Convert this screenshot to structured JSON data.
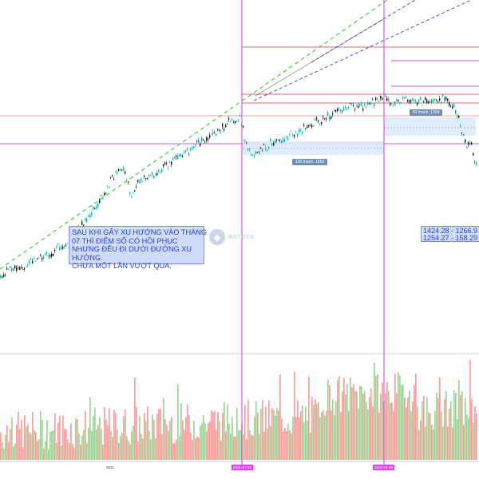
{
  "chart_data": {
    "type": "candlestick",
    "ylim": [
      0,
      1600
    ],
    "trend_note": [
      "Sau khi gãy xu hướng vào tháng",
      "07 thì điểm số có hồi phục",
      "nhưng đều đi dưới đường xu",
      "hướng.",
      "Chưa một lần vượt qua."
    ],
    "price_stats": [
      "1424.28 - 1266.9",
      "1254.27 - 158.29"
    ],
    "range_labels": [
      "130 thanh, 185đ",
      "84 thanh, 130đ"
    ],
    "x_axis_labels": [
      "2021",
      "2021-07-02",
      "2022-01-06"
    ],
    "price_path": [
      [
        0,
        350
      ],
      [
        20,
        380
      ],
      [
        40,
        410
      ],
      [
        60,
        440
      ],
      [
        80,
        490
      ],
      [
        100,
        560
      ],
      [
        115,
        640
      ],
      [
        130,
        720
      ],
      [
        145,
        820
      ],
      [
        152,
        840
      ],
      [
        160,
        780
      ],
      [
        163,
        700
      ],
      [
        170,
        760
      ],
      [
        185,
        800
      ],
      [
        200,
        820
      ],
      [
        215,
        870
      ],
      [
        230,
        900
      ],
      [
        250,
        950
      ],
      [
        270,
        1000
      ],
      [
        290,
        1050
      ],
      [
        300,
        1060
      ],
      [
        308,
        950
      ],
      [
        318,
        880
      ],
      [
        330,
        930
      ],
      [
        345,
        960
      ],
      [
        360,
        980
      ],
      [
        380,
        1010
      ],
      [
        400,
        1050
      ],
      [
        420,
        1090
      ],
      [
        440,
        1120
      ],
      [
        455,
        1110
      ],
      [
        470,
        1140
      ],
      [
        480,
        1170
      ],
      [
        490,
        1120
      ],
      [
        505,
        1150
      ],
      [
        520,
        1140
      ],
      [
        540,
        1130
      ],
      [
        555,
        1150
      ],
      [
        565,
        1130
      ],
      [
        575,
        1050
      ],
      [
        582,
        950
      ],
      [
        590,
        930
      ],
      [
        596,
        850
      ]
    ],
    "watermark": "MSTOCK"
  }
}
